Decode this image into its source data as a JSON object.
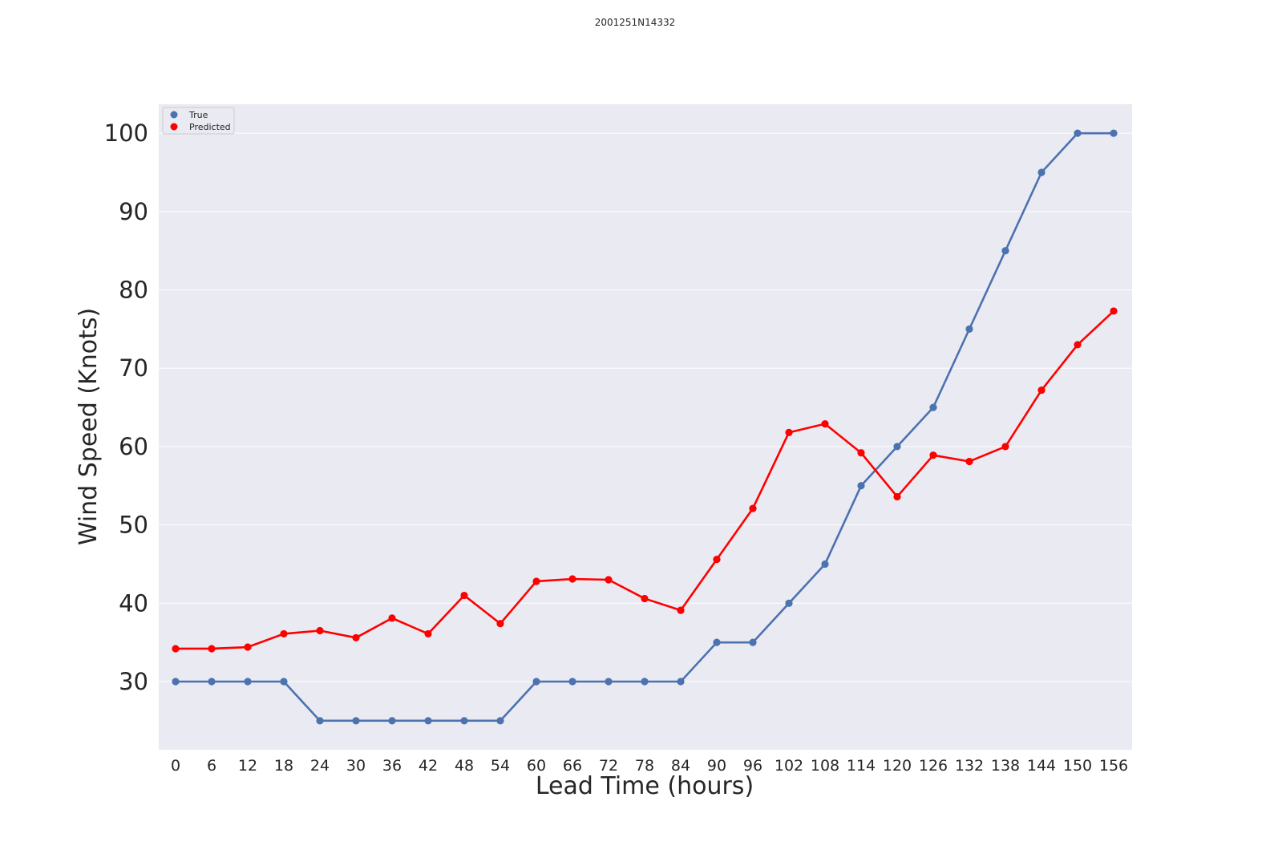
{
  "chart_data": {
    "type": "line",
    "title": "2001251N14332",
    "xlabel": "Lead Time (hours)",
    "ylabel": "Wind Speed (Knots)",
    "categories": [
      "0",
      "6",
      "12",
      "18",
      "24",
      "30",
      "36",
      "42",
      "48",
      "54",
      "60",
      "66",
      "72",
      "78",
      "84",
      "90",
      "96",
      "102",
      "108",
      "114",
      "120",
      "126",
      "132",
      "138",
      "144",
      "150",
      "156"
    ],
    "yticks": [
      "30",
      "40",
      "50",
      "60",
      "70",
      "80",
      "90",
      "100"
    ],
    "ylim": [
      21.3,
      103.7
    ],
    "grid": true,
    "legend_position": "top-left",
    "series": [
      {
        "name": "True",
        "color": "#4c72b0",
        "values": [
          30,
          30,
          30,
          30,
          25,
          25,
          25,
          25,
          25,
          25,
          30,
          30,
          30,
          30,
          30,
          35,
          35,
          40,
          45,
          55,
          60,
          65,
          75,
          85,
          95,
          100,
          100
        ]
      },
      {
        "name": "Predicted",
        "color": "#ff0000",
        "values": [
          34.2,
          34.2,
          34.4,
          36.1,
          36.5,
          35.6,
          38.1,
          36.1,
          41.0,
          37.4,
          42.8,
          43.1,
          43.0,
          40.6,
          39.1,
          45.6,
          52.1,
          61.8,
          62.9,
          59.2,
          53.6,
          58.9,
          58.1,
          60.0,
          67.2,
          73.0,
          77.3
        ]
      }
    ]
  }
}
